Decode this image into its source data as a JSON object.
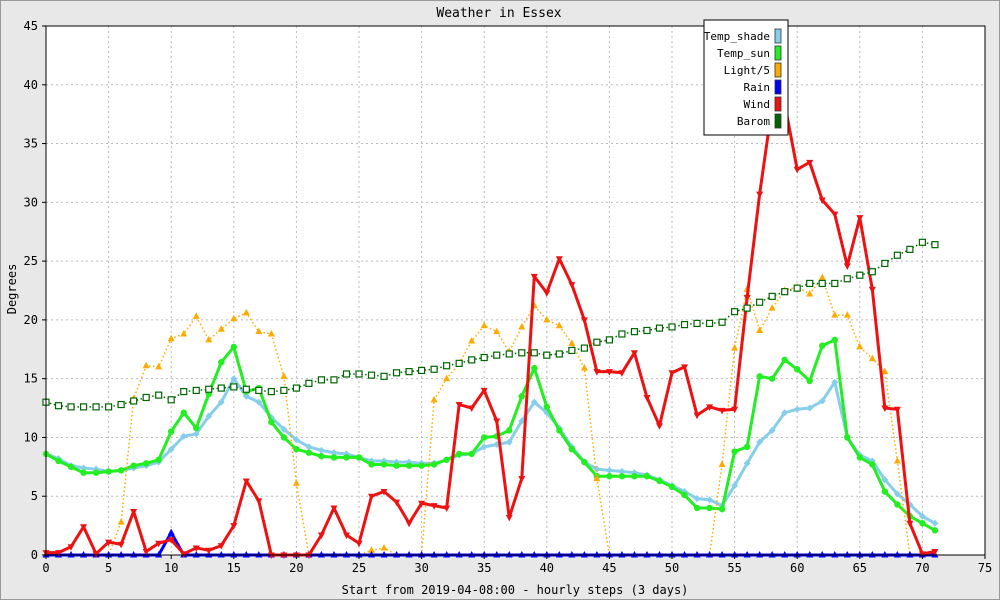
{
  "chart_data": {
    "type": "line",
    "title": "Weather in Essex",
    "xlabel": "Start from 2019-04-08:00 - hourly steps (3 days)",
    "ylabel": "Degrees",
    "xlim": [
      0,
      75
    ],
    "ylim": [
      0,
      45
    ],
    "xticks": [
      0,
      5,
      10,
      15,
      20,
      25,
      30,
      35,
      40,
      45,
      50,
      55,
      60,
      65,
      70,
      75
    ],
    "yticks": [
      0,
      5,
      10,
      15,
      20,
      25,
      30,
      35,
      40,
      45
    ],
    "grid": true,
    "legend_position": "top-right",
    "series": [
      {
        "name": "Temp_shade",
        "color": "#87ceeb",
        "marker": "diamond",
        "dash": "solid",
        "width": 3,
        "values": [
          8.6,
          8.2,
          7.6,
          7.4,
          7.3,
          7.1,
          7.2,
          7.4,
          7.6,
          7.9,
          9.0,
          10.1,
          10.3,
          11.8,
          13.0,
          15.0,
          13.5,
          13.0,
          11.7,
          10.7,
          9.8,
          9.2,
          8.9,
          8.7,
          8.6,
          8.3,
          8.0,
          8.0,
          7.9,
          7.9,
          7.8,
          7.8,
          8.1,
          8.5,
          8.6,
          9.2,
          9.4,
          9.6,
          11.4,
          13.0,
          12.1,
          10.8,
          9.2,
          7.9,
          7.3,
          7.2,
          7.1,
          7.0,
          6.8,
          6.4,
          5.9,
          5.4,
          4.8,
          4.7,
          4.2,
          5.9,
          7.8,
          9.6,
          10.6,
          12.1,
          12.4,
          12.5,
          13.1,
          14.7,
          10.0,
          8.5,
          8.0,
          6.4,
          5.2,
          4.3,
          3.3,
          2.7
        ]
      },
      {
        "name": "Temp_sun",
        "color": "#22ee22",
        "marker": "circle",
        "dash": "solid",
        "width": 3,
        "values": [
          8.6,
          8.0,
          7.5,
          7.0,
          7.0,
          7.1,
          7.2,
          7.6,
          7.8,
          8.1,
          10.5,
          12.1,
          10.8,
          13.7,
          16.4,
          17.7,
          13.9,
          14.2,
          11.3,
          10.0,
          9.0,
          8.7,
          8.4,
          8.3,
          8.3,
          8.3,
          7.7,
          7.7,
          7.6,
          7.6,
          7.6,
          7.7,
          8.1,
          8.6,
          8.6,
          10.0,
          10.1,
          10.6,
          13.5,
          15.9,
          12.6,
          10.6,
          9.0,
          7.9,
          6.7,
          6.7,
          6.7,
          6.7,
          6.7,
          6.3,
          5.8,
          5.1,
          4.0,
          4.0,
          3.9,
          8.8,
          9.2,
          15.2,
          15.0,
          16.6,
          15.8,
          14.8,
          17.8,
          18.3,
          10.0,
          8.3,
          7.7,
          5.4,
          4.3,
          3.3,
          2.7,
          2.1
        ]
      },
      {
        "name": "Light/5",
        "color": "#ffaa00",
        "marker": "triangle",
        "dash": "dotted",
        "width": 1.5,
        "values": [
          0,
          0,
          0,
          0,
          0,
          0,
          2.8,
          13.3,
          16.1,
          16.0,
          18.4,
          18.8,
          20.3,
          18.3,
          19.2,
          20.1,
          20.6,
          19.0,
          18.8,
          15.2,
          6.1,
          0,
          0,
          0,
          0,
          0,
          0.4,
          0.6,
          0,
          0,
          0,
          13.2,
          15.0,
          16.3,
          18.2,
          19.5,
          19.0,
          17.3,
          19.4,
          21.2,
          20.0,
          19.5,
          18.0,
          15.9,
          6.5,
          0,
          0,
          0,
          0,
          0,
          0,
          0,
          0,
          0,
          7.7,
          17.6,
          22.6,
          19.1,
          21.0,
          22.5,
          22.8,
          22.2,
          23.6,
          20.4,
          20.4,
          17.7,
          16.7,
          15.6,
          8.0,
          0,
          0,
          0
        ]
      },
      {
        "name": "Rain",
        "color": "#0000ff",
        "marker": "triangle",
        "dash": "solid",
        "width": 3,
        "values": [
          0,
          0,
          0,
          0,
          0,
          0,
          0,
          0,
          0,
          0,
          1.9,
          0,
          0,
          0,
          0,
          0,
          0,
          0,
          0,
          0,
          0,
          0,
          0,
          0,
          0,
          0,
          0,
          0,
          0,
          0,
          0,
          0,
          0,
          0,
          0,
          0,
          0,
          0,
          0,
          0,
          0,
          0,
          0,
          0,
          0,
          0,
          0,
          0,
          0,
          0,
          0,
          0,
          0,
          0,
          0,
          0,
          0,
          0,
          0,
          0,
          0,
          0,
          0,
          0,
          0,
          0,
          0,
          0,
          0,
          0,
          0,
          0
        ]
      },
      {
        "name": "Wind",
        "color": "#ee1111",
        "marker": "triangle-down",
        "dash": "solid",
        "width": 3,
        "values": [
          0.2,
          0.2,
          0.7,
          2.4,
          0.1,
          1.1,
          0.9,
          3.7,
          0.3,
          1.0,
          1.3,
          0.1,
          0.6,
          0.4,
          0.8,
          2.5,
          6.3,
          4.6,
          0,
          0,
          0,
          0,
          1.7,
          4.0,
          1.7,
          1.0,
          5.0,
          5.4,
          4.5,
          2.7,
          4.4,
          4.2,
          4.0,
          12.8,
          12.5,
          14.0,
          11.4,
          3.2,
          6.5,
          23.7,
          22.3,
          25.2,
          23.0,
          20.0,
          15.6,
          15.6,
          15.5,
          17.2,
          13.4,
          11.0,
          15.5,
          16.0,
          11.9,
          12.6,
          12.3,
          12.4,
          21.9,
          30.7,
          38.2,
          38.4,
          32.8,
          33.4,
          30.2,
          29.0,
          24.6,
          28.7,
          22.6,
          12.5,
          12.4,
          2.7,
          0.1,
          0.3
        ]
      },
      {
        "name": "Barom",
        "color": "#006600",
        "marker": "square-open",
        "dash": "dotted",
        "width": 1.5,
        "values": [
          13.0,
          12.7,
          12.6,
          12.6,
          12.6,
          12.6,
          12.8,
          13.1,
          13.4,
          13.6,
          13.2,
          13.9,
          14.0,
          14.1,
          14.2,
          14.3,
          14.1,
          14.0,
          13.9,
          14.0,
          14.2,
          14.6,
          14.9,
          14.9,
          15.4,
          15.4,
          15.3,
          15.2,
          15.5,
          15.6,
          15.7,
          15.8,
          16.1,
          16.3,
          16.6,
          16.8,
          17.0,
          17.1,
          17.2,
          17.2,
          17.0,
          17.1,
          17.4,
          17.6,
          18.1,
          18.3,
          18.8,
          19.0,
          19.1,
          19.3,
          19.4,
          19.6,
          19.7,
          19.7,
          19.8,
          20.7,
          21.0,
          21.5,
          22.0,
          22.4,
          22.7,
          23.1,
          23.1,
          23.1,
          23.5,
          23.8,
          24.1,
          24.8,
          25.5,
          26.0,
          26.6,
          26.4
        ]
      }
    ]
  }
}
